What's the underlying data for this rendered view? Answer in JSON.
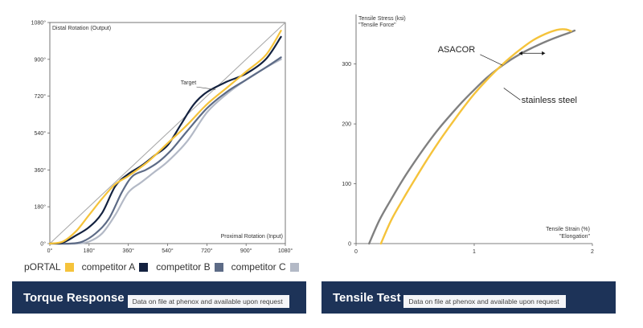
{
  "chart_data": [
    {
      "type": "line",
      "title": "",
      "xlabel": "Proximal Rotation (Input)",
      "ylabel": "Distal Rotation (Output)",
      "xlim": [
        0,
        1080
      ],
      "ylim": [
        0,
        1080
      ],
      "x_ticks": [
        0,
        180,
        360,
        540,
        720,
        900,
        1080
      ],
      "x_tick_labels": [
        "0°",
        "180°",
        "360°",
        "540°",
        "720°",
        "900°",
        "1080°"
      ],
      "y_ticks": [
        0,
        180,
        360,
        540,
        720,
        900,
        1080
      ],
      "y_tick_labels": [
        "0°",
        "180°",
        "360°",
        "540°",
        "720°",
        "900°",
        "1080°"
      ],
      "annotations": [
        {
          "text": "Target",
          "x": 680,
          "y": 730
        }
      ],
      "reference_line": {
        "name": "Target",
        "color": "#aaaaaa",
        "points": [
          [
            0,
            0
          ],
          [
            1080,
            1080
          ]
        ]
      },
      "series": [
        {
          "name": "pORTAL",
          "color": "#f5c33b",
          "points": [
            [
              0,
              0
            ],
            [
              60,
              10
            ],
            [
              120,
              60
            ],
            [
              180,
              140
            ],
            [
              240,
              220
            ],
            [
              300,
              290
            ],
            [
              360,
              330
            ],
            [
              450,
              400
            ],
            [
              540,
              490
            ],
            [
              630,
              580
            ],
            [
              720,
              680
            ],
            [
              810,
              760
            ],
            [
              900,
              840
            ],
            [
              990,
              920
            ],
            [
              1060,
              1040
            ]
          ]
        },
        {
          "name": "competitor A",
          "color": "#13213f",
          "points": [
            [
              0,
              0
            ],
            [
              60,
              5
            ],
            [
              120,
              40
            ],
            [
              180,
              80
            ],
            [
              240,
              150
            ],
            [
              300,
              280
            ],
            [
              360,
              340
            ],
            [
              420,
              380
            ],
            [
              480,
              430
            ],
            [
              540,
              480
            ],
            [
              600,
              580
            ],
            [
              660,
              680
            ],
            [
              720,
              740
            ],
            [
              810,
              790
            ],
            [
              900,
              830
            ],
            [
              990,
              900
            ],
            [
              1060,
              1010
            ]
          ]
        },
        {
          "name": "competitor B",
          "color": "#5d6b86",
          "points": [
            [
              0,
              0
            ],
            [
              90,
              0
            ],
            [
              150,
              10
            ],
            [
              210,
              50
            ],
            [
              270,
              120
            ],
            [
              330,
              250
            ],
            [
              380,
              330
            ],
            [
              440,
              360
            ],
            [
              500,
              400
            ],
            [
              560,
              460
            ],
            [
              630,
              550
            ],
            [
              720,
              660
            ],
            [
              810,
              740
            ],
            [
              900,
              800
            ],
            [
              990,
              860
            ],
            [
              1060,
              910
            ]
          ]
        },
        {
          "name": "competitor C",
          "color": "#b3b9c6",
          "points": [
            [
              0,
              0
            ],
            [
              120,
              0
            ],
            [
              180,
              10
            ],
            [
              240,
              50
            ],
            [
              300,
              140
            ],
            [
              360,
              250
            ],
            [
              420,
              300
            ],
            [
              480,
              350
            ],
            [
              540,
              400
            ],
            [
              630,
              500
            ],
            [
              720,
              640
            ],
            [
              810,
              730
            ],
            [
              900,
              800
            ],
            [
              990,
              860
            ],
            [
              1060,
              900
            ]
          ]
        }
      ]
    },
    {
      "type": "line",
      "title": "",
      "xlabel": "Tensile Strain (%)",
      "xlabel2": "\"Elongation\"",
      "ylabel": "Tensile Stress (ksi)",
      "ylabel2": "\"Tensile Force\"",
      "xlim": [
        0,
        2
      ],
      "ylim": [
        0,
        360
      ],
      "x_ticks": [
        0,
        1,
        2
      ],
      "x_tick_labels": [
        "0",
        "1",
        "2"
      ],
      "y_ticks": [
        0,
        100,
        200,
        300
      ],
      "y_tick_labels": [
        "0",
        "100",
        "200",
        "300"
      ],
      "annotations": [
        {
          "text": "ASACOR",
          "x": 0.85,
          "y": 320
        },
        {
          "text": "stainless steel",
          "x": 1.4,
          "y": 235
        }
      ],
      "series": [
        {
          "name": "ASACOR",
          "color": "#f5c33b",
          "points": [
            [
              0.21,
              0
            ],
            [
              0.3,
              40
            ],
            [
              0.4,
              75
            ],
            [
              0.5,
              108
            ],
            [
              0.6,
              140
            ],
            [
              0.7,
              170
            ],
            [
              0.8,
              198
            ],
            [
              0.9,
              225
            ],
            [
              1.0,
              250
            ],
            [
              1.1,
              272
            ],
            [
              1.2,
              292
            ],
            [
              1.3,
              310
            ],
            [
              1.4,
              326
            ],
            [
              1.5,
              340
            ],
            [
              1.6,
              350
            ],
            [
              1.7,
              357
            ],
            [
              1.77,
              358
            ],
            [
              1.82,
              355
            ]
          ]
        },
        {
          "name": "stainless steel",
          "color": "#808080",
          "points": [
            [
              0.11,
              0
            ],
            [
              0.2,
              40
            ],
            [
              0.3,
              75
            ],
            [
              0.4,
              108
            ],
            [
              0.5,
              138
            ],
            [
              0.6,
              166
            ],
            [
              0.7,
              192
            ],
            [
              0.8,
              215
            ],
            [
              0.9,
              237
            ],
            [
              1.0,
              257
            ],
            [
              1.1,
              276
            ],
            [
              1.2,
              292
            ],
            [
              1.3,
              306
            ],
            [
              1.4,
              318
            ],
            [
              1.5,
              328
            ],
            [
              1.6,
              337
            ],
            [
              1.7,
              345
            ],
            [
              1.8,
              352
            ],
            [
              1.85,
              356
            ]
          ]
        }
      ]
    }
  ],
  "legend": {
    "items": [
      {
        "label": "pORTAL",
        "color": "#f5c33b"
      },
      {
        "label": "competitor A",
        "color": "#13213f"
      },
      {
        "label": "competitor B",
        "color": "#5d6b86"
      },
      {
        "label": "competitor C",
        "color": "#b3b9c6"
      }
    ]
  },
  "banners": {
    "left": {
      "title": "Torque Response",
      "note": "Data on file at phenox and available upon request"
    },
    "right": {
      "title": "Tensile Test",
      "note": "Data on file at phenox and available upon request"
    }
  },
  "colors": {
    "banner_bg": "#1d3358",
    "note_bg": "#f4f5f8"
  }
}
